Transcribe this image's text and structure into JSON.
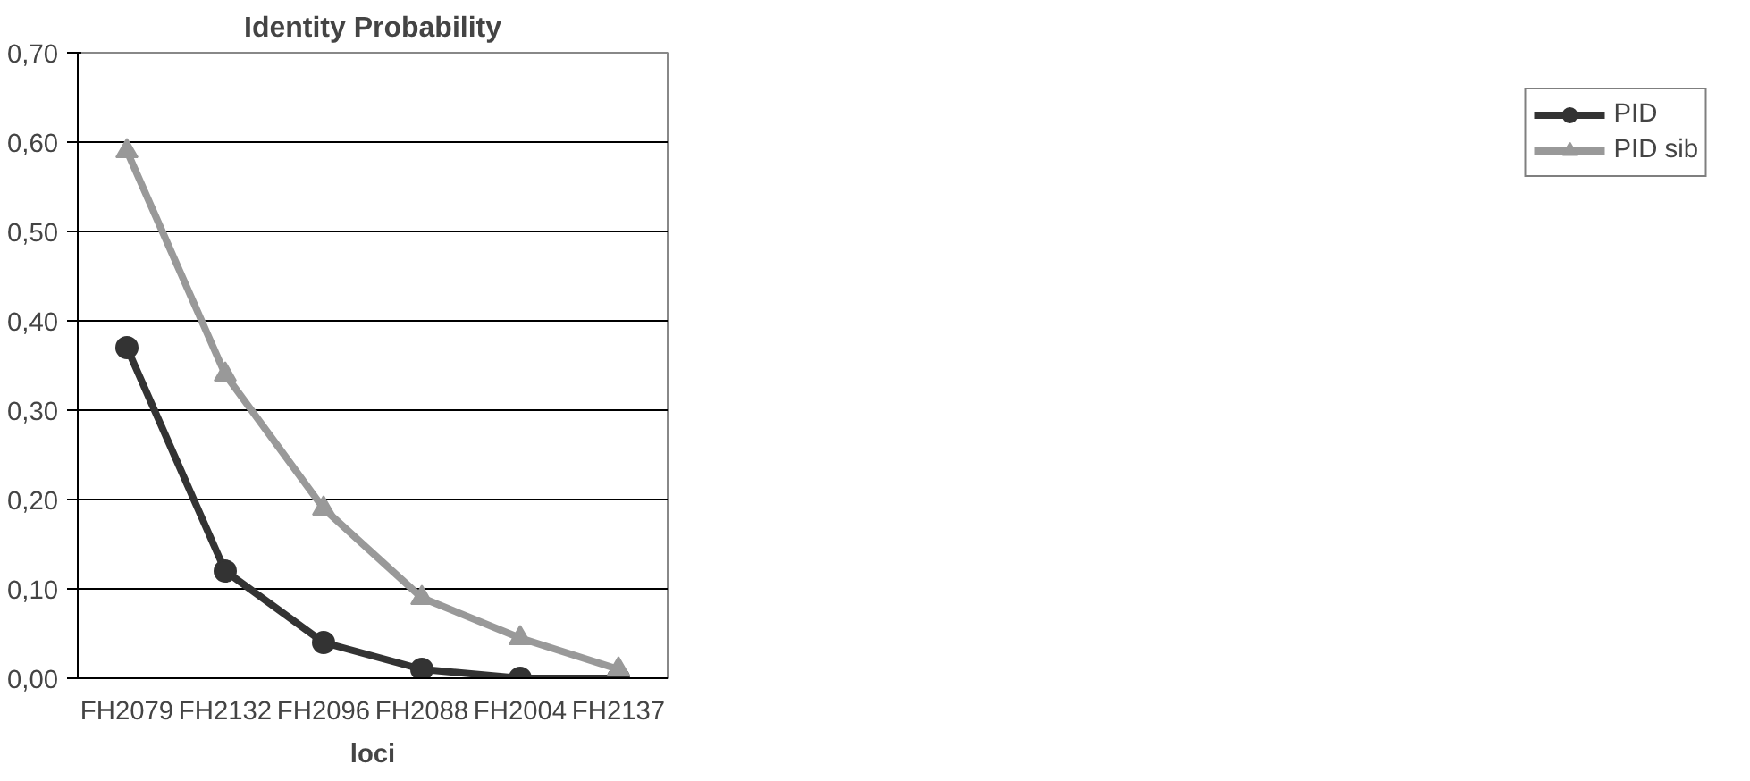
{
  "chart_data": {
    "type": "line",
    "title": "Identity Probability",
    "xlabel": "loci",
    "categories": [
      "FH2079",
      "FH2132",
      "FH2096",
      "FH2088",
      "FH2004",
      "FH2137"
    ],
    "series": [
      {
        "name": "PID",
        "color": "#333333",
        "marker": "circle",
        "values": [
          0.37,
          0.12,
          0.04,
          0.01,
          0.0,
          0.0
        ]
      },
      {
        "name": "PID sib",
        "color": "#999999",
        "marker": "triangle",
        "values": [
          0.59,
          0.34,
          0.19,
          0.09,
          0.045,
          0.01
        ]
      }
    ],
    "ylim": [
      0,
      0.7
    ],
    "yticks": [
      {
        "value": 0,
        "label": "0,00"
      },
      {
        "value": 0.1,
        "label": "0,10"
      },
      {
        "value": 0.2,
        "label": "0,20"
      },
      {
        "value": 0.3,
        "label": "0,30"
      },
      {
        "value": 0.4,
        "label": "0,40"
      },
      {
        "value": 0.5,
        "label": "0,50"
      },
      {
        "value": 0.6,
        "label": "0,60"
      },
      {
        "value": 0.7,
        "label": "0,70"
      }
    ],
    "grid": "y",
    "legend": "right",
    "line_style": "solid"
  }
}
